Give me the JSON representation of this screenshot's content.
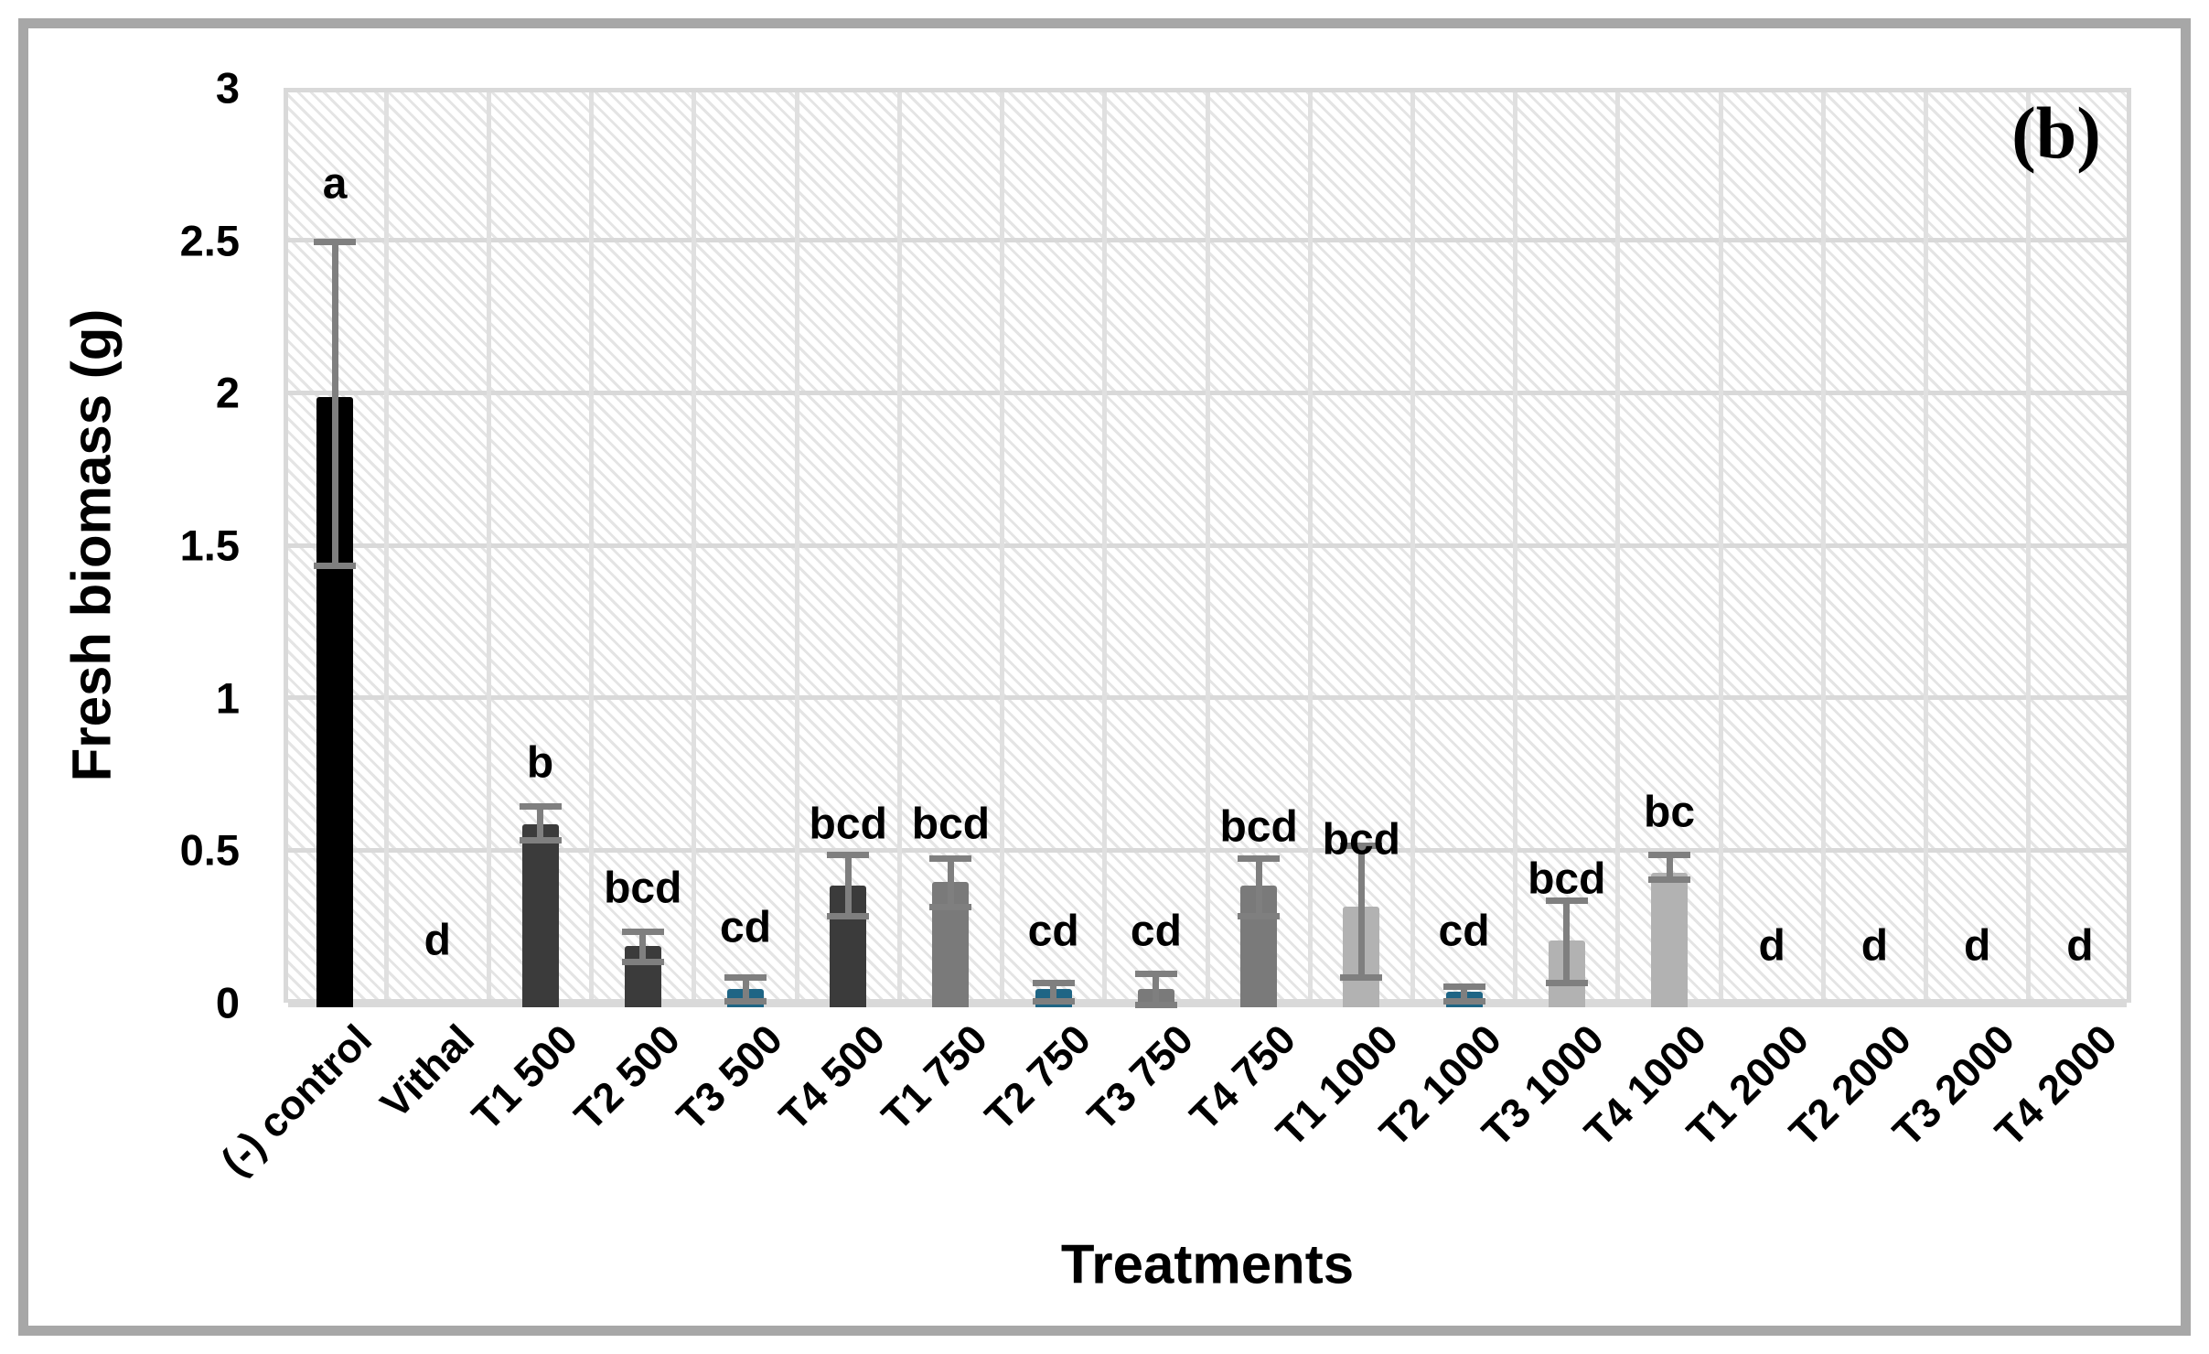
{
  "figure": {
    "panel_label": "(b)",
    "border_color": "#a7a7a7",
    "background_color": "#ffffff"
  },
  "chart_data": {
    "type": "bar",
    "title": "",
    "xlabel": "Treatments",
    "ylabel": "Fresh biomass (g)",
    "ylim": [
      0,
      3
    ],
    "ytick_values": [
      3,
      2.5,
      2,
      1.5,
      1,
      0.5,
      0
    ],
    "ytick_labels": [
      "3",
      "2.5",
      "2",
      "1.5",
      "1",
      "0.5",
      "0"
    ],
    "grid": {
      "horizontal": true,
      "vertical": true,
      "gridline_color": "#d9d9d9",
      "plot_fill": "light diagonal hatch pattern"
    },
    "legend": "none",
    "categories": [
      "(-) control",
      "Vithal",
      "T1 500",
      "T2 500",
      "T3 500",
      "T4 500",
      "T1 750",
      "T2 750",
      "T3 750",
      "T4 750",
      "T1 1000",
      "T2 1000",
      "T3 1000",
      "T4 1000",
      "T1 2000",
      "T2 2000",
      "T3 2000",
      "T4 2000"
    ],
    "values": [
      2.0,
      0,
      0.6,
      0.2,
      0.06,
      0.4,
      0.41,
      0.06,
      0.06,
      0.4,
      0.33,
      0.05,
      0.22,
      0.44,
      0,
      0,
      0,
      0
    ],
    "error_low": [
      1.45,
      null,
      0.55,
      0.15,
      0.02,
      0.3,
      0.33,
      0.02,
      0.01,
      0.3,
      0.1,
      0.02,
      0.08,
      0.42,
      null,
      null,
      null,
      null
    ],
    "error_high": [
      2.51,
      null,
      0.66,
      0.25,
      0.1,
      0.5,
      0.49,
      0.08,
      0.11,
      0.49,
      0.53,
      0.07,
      0.35,
      0.5,
      null,
      null,
      null,
      null
    ],
    "sig_letters": [
      "a",
      "d",
      "b",
      "bcd",
      "cd",
      "bcd",
      "bcd",
      "cd",
      "cd",
      "bcd",
      "bcd",
      "cd",
      "bcd",
      "bc",
      "d",
      "d",
      "d",
      "d"
    ],
    "sig_letter_y": [
      2.7,
      0.22,
      0.8,
      0.39,
      0.26,
      0.6,
      0.6,
      0.25,
      0.25,
      0.59,
      0.55,
      0.25,
      0.42,
      0.64,
      0.2,
      0.2,
      0.2,
      0.2
    ],
    "bar_colors": [
      "#000000",
      null,
      "#3b3b3b",
      "#3b3b3b",
      "#1f6585",
      "#3b3b3b",
      "#7a7a7a",
      "#1f6585",
      "#7a7a7a",
      "#7a7a7a",
      "#b2b2b2",
      "#1f6585",
      "#b2b2b2",
      "#b2b2b2",
      null,
      null,
      null,
      null
    ],
    "error_color": "#7f7f7f"
  }
}
